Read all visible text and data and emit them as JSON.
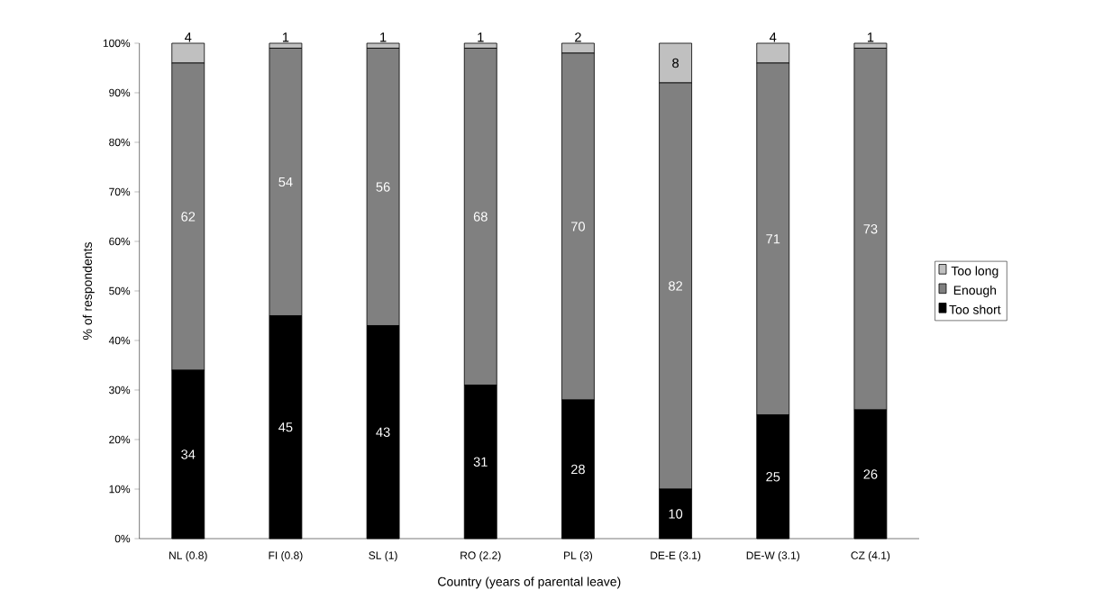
{
  "chart_data": {
    "type": "bar",
    "stacked": true,
    "xlabel": "Country (years of parental leave)",
    "ylabel": "% of respondents",
    "categories": [
      "NL (0.8)",
      "FI (0.8)",
      "SL (1)",
      "RO (2.2)",
      "PL (3)",
      "DE-E (3.1)",
      "DE-W (3.1)",
      "CZ (4.1)"
    ],
    "series": [
      {
        "name": "Too short",
        "color": "#000000",
        "values": [
          34,
          45,
          43,
          31,
          28,
          10,
          25,
          26
        ]
      },
      {
        "name": "Enough",
        "color": "#808080",
        "values": [
          62,
          54,
          56,
          68,
          70,
          82,
          71,
          73
        ]
      },
      {
        "name": "Too long",
        "color": "#c0c0c0",
        "values": [
          4,
          1,
          1,
          1,
          2,
          8,
          4,
          1
        ]
      }
    ],
    "ylim": [
      0,
      100
    ],
    "yticks": [
      {
        "value": 0,
        "label": "0%"
      },
      {
        "value": 10,
        "label": "10%"
      },
      {
        "value": 20,
        "label": "20%"
      },
      {
        "value": 30,
        "label": "30%"
      },
      {
        "value": 40,
        "label": "40%"
      },
      {
        "value": 50,
        "label": "50%"
      },
      {
        "value": 60,
        "label": "60%"
      },
      {
        "value": 70,
        "label": "70%"
      },
      {
        "value": 80,
        "label": "80%"
      },
      {
        "value": 90,
        "label": "90%"
      },
      {
        "value": 100,
        "label": "100%"
      }
    ],
    "data_labels": true,
    "grid": false,
    "legend": "right"
  }
}
